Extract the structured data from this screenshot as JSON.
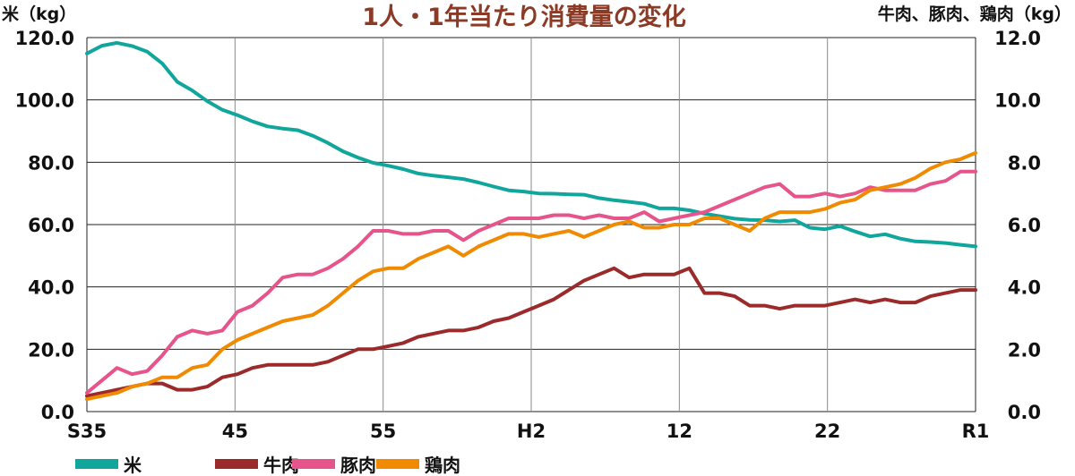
{
  "chart_data": {
    "type": "line",
    "title": "1人・1年当たり消費量の変化",
    "left_axis_unit": "米（kg）",
    "right_axis_unit": "牛肉、豚肉、鶏肉（kg）",
    "x_tick_labels": [
      "S35",
      "45",
      "55",
      "H2",
      "12",
      "22",
      "R1"
    ],
    "left_ticks": [
      "0.0",
      "20.0",
      "40.0",
      "60.0",
      "80.0",
      "100.0",
      "120.0"
    ],
    "right_ticks": [
      "0.0",
      "2.0",
      "4.0",
      "6.0",
      "8.0",
      "10.0",
      "12.0"
    ],
    "left_ylim": [
      0,
      120
    ],
    "right_ylim": [
      0,
      12
    ],
    "grid": {
      "horizontal": true,
      "vertical": true
    },
    "legend_position": "bottom-left",
    "x_years": [
      1960,
      1961,
      1962,
      1963,
      1964,
      1965,
      1966,
      1967,
      1968,
      1969,
      1970,
      1971,
      1972,
      1973,
      1974,
      1975,
      1976,
      1977,
      1978,
      1979,
      1980,
      1981,
      1982,
      1983,
      1984,
      1985,
      1986,
      1987,
      1988,
      1989,
      1990,
      1991,
      1992,
      1993,
      1994,
      1995,
      1996,
      1997,
      1998,
      1999,
      2000,
      2001,
      2002,
      2003,
      2004,
      2005,
      2006,
      2007,
      2008,
      2009,
      2010,
      2011,
      2012,
      2013,
      2014,
      2015,
      2016,
      2017,
      2018,
      2019
    ],
    "series": [
      {
        "name": "米",
        "axis": "left",
        "color": "#11a69c",
        "values": [
          114.9,
          117.4,
          118.3,
          117.3,
          115.5,
          111.7,
          105.8,
          103.0,
          99.6,
          96.8,
          95.1,
          93.1,
          91.5,
          90.8,
          90.3,
          88.5,
          86.2,
          83.5,
          81.5,
          79.8,
          78.9,
          77.8,
          76.4,
          75.7,
          75.2,
          74.6,
          73.5,
          72.2,
          71.0,
          70.6,
          70.0,
          69.9,
          69.7,
          69.6,
          68.5,
          67.8,
          67.3,
          66.7,
          65.2,
          65.2,
          64.6,
          63.5,
          62.7,
          61.9,
          61.5,
          61.4,
          61.0,
          61.4,
          59.0,
          58.5,
          59.5,
          57.8,
          56.2,
          56.9,
          55.5,
          54.6,
          54.4,
          54.1,
          53.5,
          53.0
        ]
      },
      {
        "name": "牛肉",
        "axis": "right",
        "color": "#9b2b2b",
        "values": [
          0.5,
          0.6,
          0.7,
          0.8,
          0.9,
          0.9,
          0.7,
          0.7,
          0.8,
          1.1,
          1.2,
          1.4,
          1.5,
          1.5,
          1.5,
          1.5,
          1.6,
          1.8,
          2.0,
          2.0,
          2.1,
          2.2,
          2.4,
          2.5,
          2.6,
          2.6,
          2.7,
          2.9,
          3.0,
          3.2,
          3.4,
          3.6,
          3.9,
          4.2,
          4.4,
          4.6,
          4.3,
          4.4,
          4.4,
          4.4,
          4.6,
          3.8,
          3.8,
          3.7,
          3.4,
          3.4,
          3.3,
          3.4,
          3.4,
          3.4,
          3.5,
          3.6,
          3.5,
          3.6,
          3.5,
          3.5,
          3.7,
          3.8,
          3.9,
          3.9
        ]
      },
      {
        "name": "豚肉",
        "axis": "right",
        "color": "#e6548c",
        "values": [
          0.6,
          1.0,
          1.4,
          1.2,
          1.3,
          1.8,
          2.4,
          2.6,
          2.5,
          2.6,
          3.2,
          3.4,
          3.8,
          4.3,
          4.4,
          4.4,
          4.6,
          4.9,
          5.3,
          5.8,
          5.8,
          5.7,
          5.7,
          5.8,
          5.8,
          5.5,
          5.8,
          6.0,
          6.2,
          6.2,
          6.2,
          6.3,
          6.3,
          6.2,
          6.3,
          6.2,
          6.2,
          6.4,
          6.1,
          6.2,
          6.3,
          6.4,
          6.6,
          6.8,
          7.0,
          7.2,
          7.3,
          6.9,
          6.9,
          7.0,
          6.9,
          7.0,
          7.2,
          7.1,
          7.1,
          7.1,
          7.3,
          7.4,
          7.7,
          7.7
        ]
      },
      {
        "name": "鶏肉",
        "axis": "right",
        "color": "#f08a00",
        "values": [
          0.4,
          0.5,
          0.6,
          0.8,
          0.9,
          1.1,
          1.1,
          1.4,
          1.5,
          2.0,
          2.3,
          2.5,
          2.7,
          2.9,
          3.0,
          3.1,
          3.4,
          3.8,
          4.2,
          4.5,
          4.6,
          4.6,
          4.9,
          5.1,
          5.3,
          5.0,
          5.3,
          5.5,
          5.7,
          5.7,
          5.6,
          5.7,
          5.8,
          5.6,
          5.8,
          6.0,
          6.1,
          5.9,
          5.9,
          6.0,
          6.0,
          6.2,
          6.2,
          6.0,
          5.8,
          6.2,
          6.4,
          6.4,
          6.4,
          6.5,
          6.7,
          6.8,
          7.1,
          7.2,
          7.3,
          7.5,
          7.8,
          8.0,
          8.1,
          8.3
        ]
      }
    ]
  }
}
